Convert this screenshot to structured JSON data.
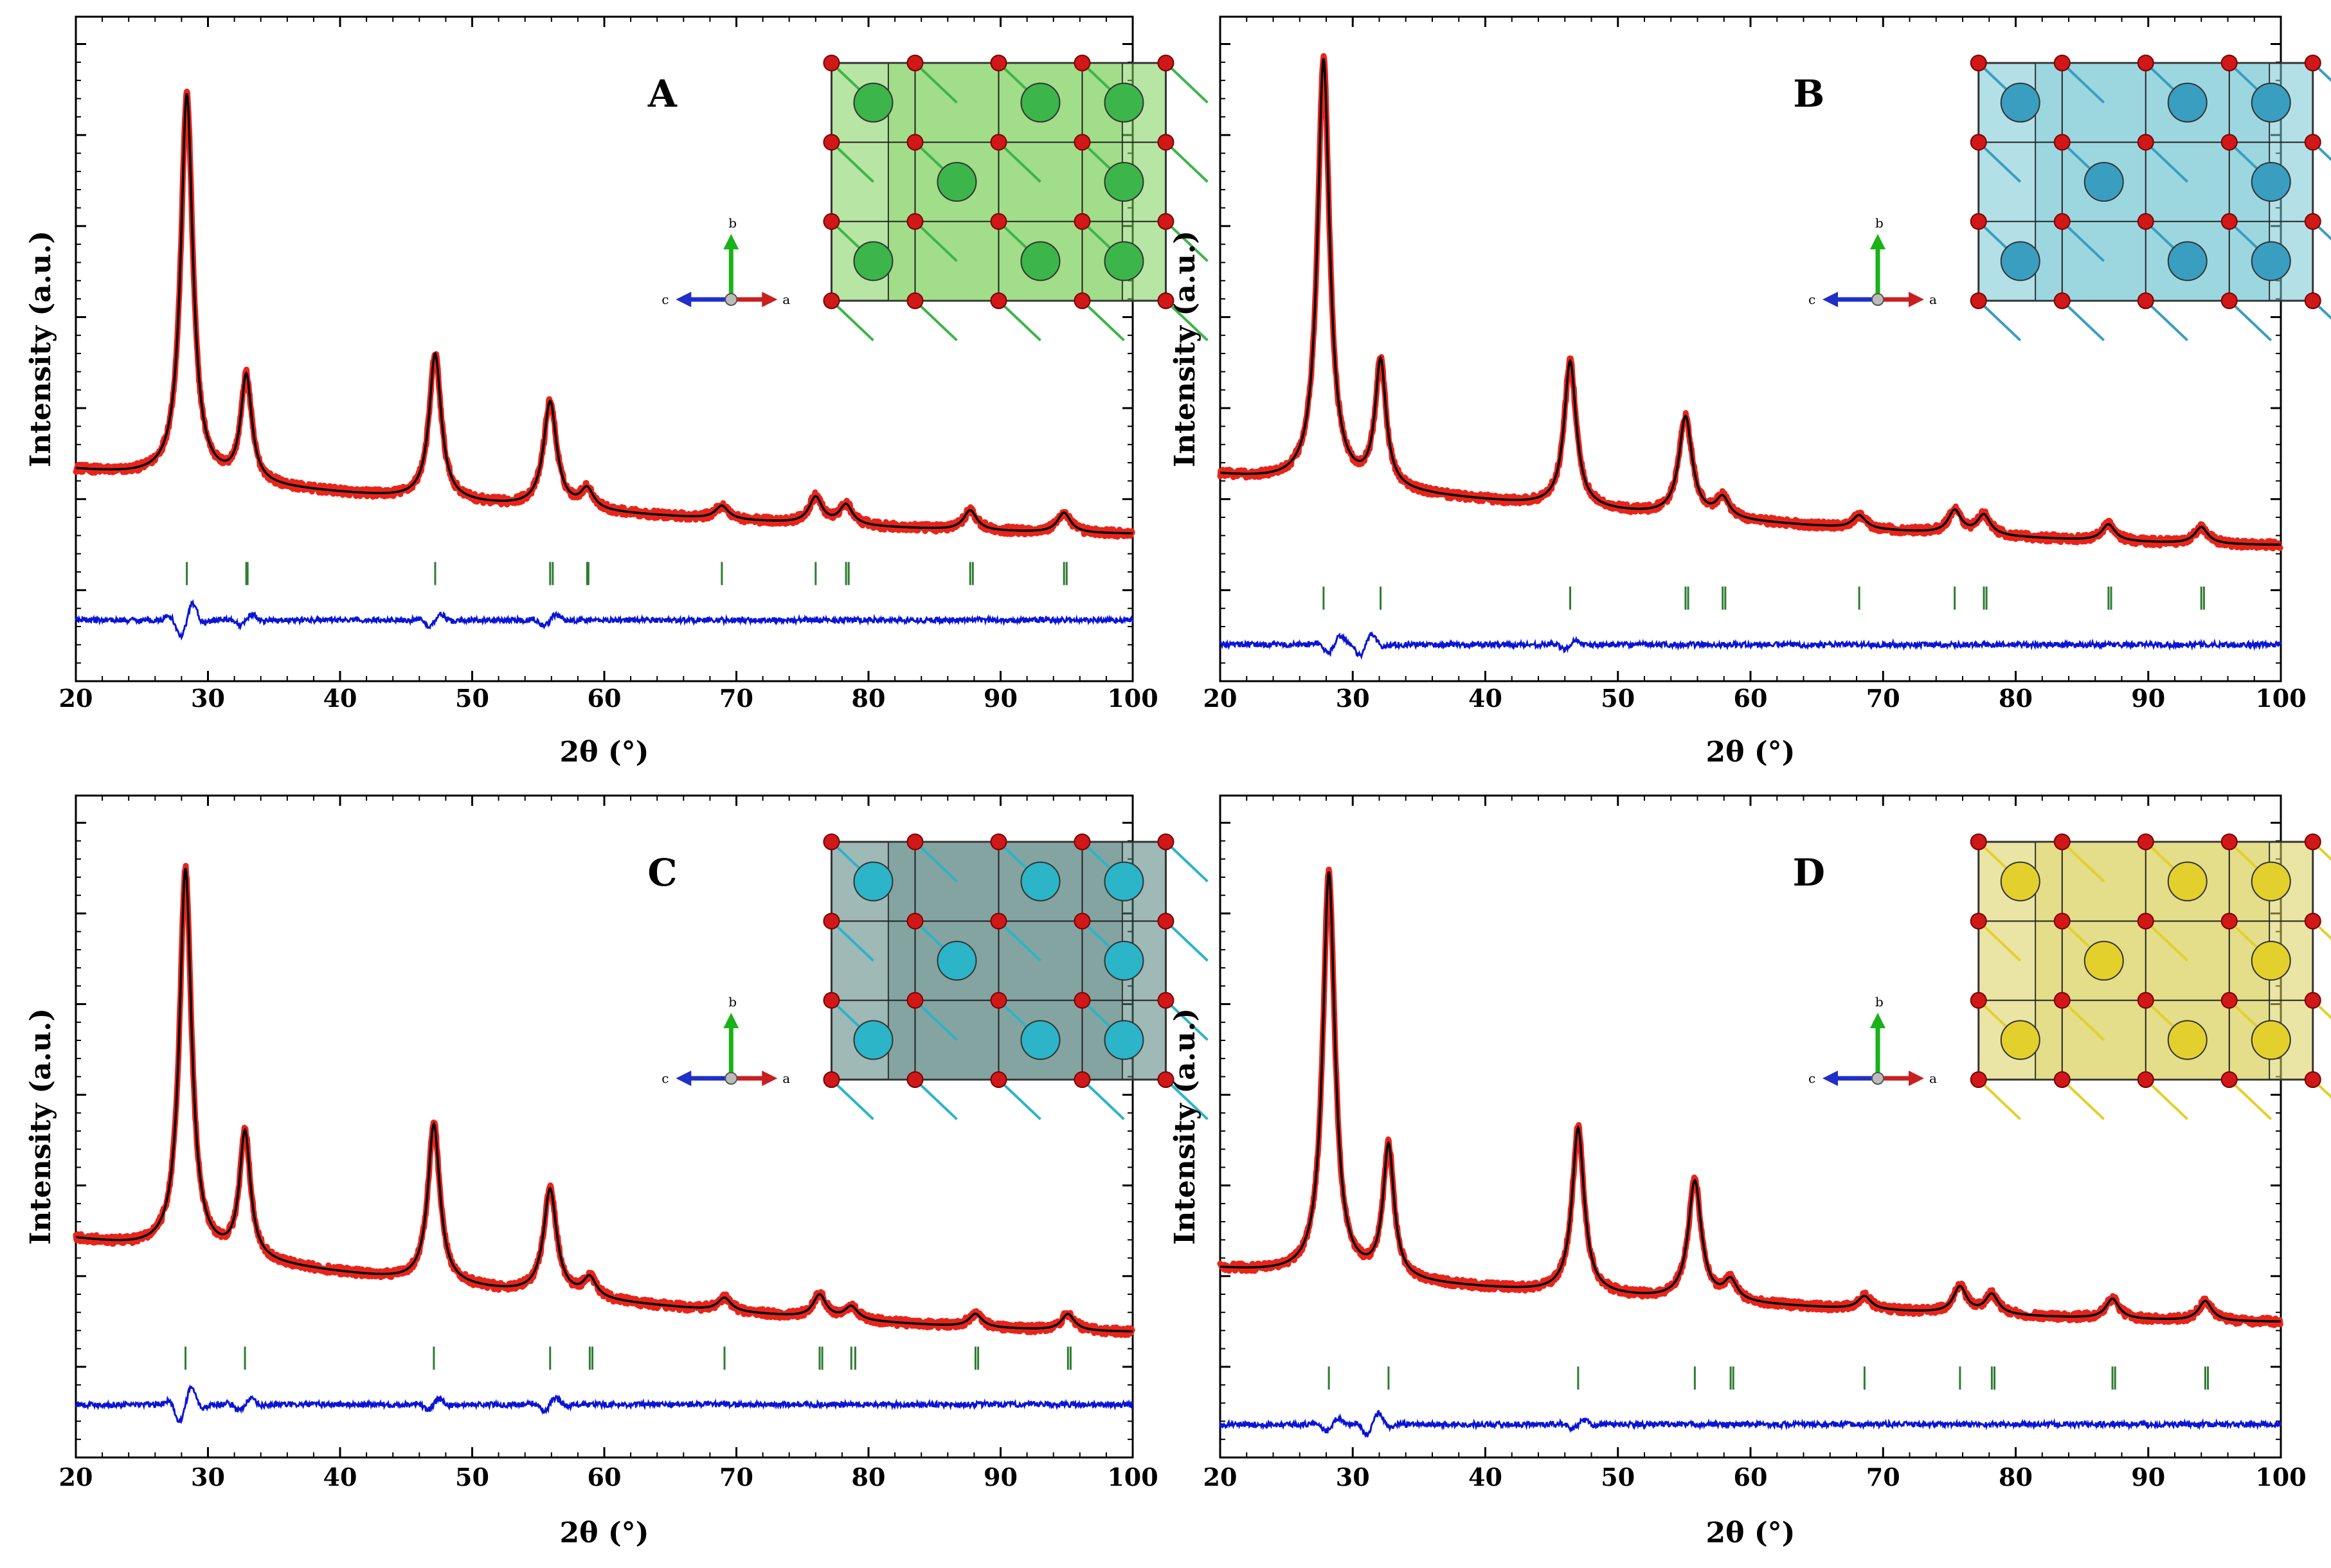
{
  "colors": {
    "observed": "#e8241a",
    "calculated": "#000000",
    "difference": "#0a14d6",
    "reflections": "#2e7d32",
    "axes": "#000000"
  },
  "chart_data": [
    {
      "type": "line",
      "panel_label": "A",
      "xlabel": "2θ (°)",
      "ylabel": "Intensity (a.u.)",
      "xlim": [
        20,
        100
      ],
      "ylim": [
        0,
        1
      ],
      "xticks": [
        20,
        30,
        40,
        50,
        60,
        70,
        80,
        90,
        100
      ],
      "x_tick_labels": [
        "20",
        "30",
        "40",
        "50",
        "60",
        "70",
        "80",
        "90",
        "100"
      ],
      "grid": false,
      "legend": "none",
      "inset": "crystal structure (green polyhedra) with c, b, a axes",
      "background": {
        "start": 0.318,
        "end": 0.222
      },
      "peaks": [
        {
          "x": 28.4,
          "height": 0.58,
          "width": 0.55
        },
        {
          "x": 32.9,
          "height": 0.16,
          "width": 0.5
        },
        {
          "x": 47.2,
          "height": 0.22,
          "width": 0.55
        },
        {
          "x": 55.9,
          "height": 0.16,
          "width": 0.6
        },
        {
          "x": 58.7,
          "height": 0.03,
          "width": 0.6
        },
        {
          "x": 68.9,
          "height": 0.02,
          "width": 0.6
        },
        {
          "x": 76.0,
          "height": 0.04,
          "width": 0.6
        },
        {
          "x": 78.3,
          "height": 0.03,
          "width": 0.6
        },
        {
          "x": 87.7,
          "height": 0.03,
          "width": 0.6
        },
        {
          "x": 94.8,
          "height": 0.03,
          "width": 0.6
        }
      ],
      "reflections": [
        28.4,
        32.9,
        33.0,
        47.2,
        55.9,
        56.1,
        58.7,
        58.8,
        68.9,
        76.0,
        78.3,
        78.5,
        87.7,
        87.9,
        94.8,
        95.0
      ],
      "difference": {
        "baseline": 0.092,
        "features": [
          {
            "x": 28.4,
            "amp": 0.03
          },
          {
            "x": 32.9,
            "amp": 0.01
          },
          {
            "x": 47.2,
            "amp": 0.01
          },
          {
            "x": 55.9,
            "amp": 0.01
          }
        ]
      }
    },
    {
      "type": "line",
      "panel_label": "B",
      "xlabel": "2θ (°)",
      "ylabel": "Intensity (a.u.)",
      "xlim": [
        20,
        100
      ],
      "ylim": [
        0,
        1
      ],
      "xticks": [
        20,
        30,
        40,
        50,
        60,
        70,
        80,
        90,
        100
      ],
      "x_tick_labels": [
        "20",
        "30",
        "40",
        "50",
        "60",
        "70",
        "80",
        "90",
        "100"
      ],
      "grid": false,
      "legend": "none",
      "inset": "crystal structure (cyan polyhedra) with c, b, a axes",
      "background": {
        "start": 0.31,
        "end": 0.205
      },
      "peaks": [
        {
          "x": 27.8,
          "height": 0.64,
          "width": 0.55
        },
        {
          "x": 32.1,
          "height": 0.19,
          "width": 0.5
        },
        {
          "x": 46.4,
          "height": 0.22,
          "width": 0.55
        },
        {
          "x": 55.1,
          "height": 0.15,
          "width": 0.6
        },
        {
          "x": 57.9,
          "height": 0.03,
          "width": 0.6
        },
        {
          "x": 68.2,
          "height": 0.02,
          "width": 0.6
        },
        {
          "x": 75.4,
          "height": 0.035,
          "width": 0.6
        },
        {
          "x": 77.6,
          "height": 0.03,
          "width": 0.6
        },
        {
          "x": 87.0,
          "height": 0.025,
          "width": 0.6
        },
        {
          "x": 94.0,
          "height": 0.025,
          "width": 0.6
        }
      ],
      "reflections": [
        27.8,
        32.1,
        46.4,
        55.1,
        55.3,
        57.9,
        58.1,
        68.2,
        75.4,
        77.6,
        77.8,
        87.0,
        87.2,
        94.0,
        94.2
      ],
      "difference": {
        "baseline": 0.055,
        "features": [
          {
            "x": 28.6,
            "amp": 0.015
          },
          {
            "x": 31.0,
            "amp": 0.02
          },
          {
            "x": 46.4,
            "amp": 0.008
          }
        ]
      }
    },
    {
      "type": "line",
      "panel_label": "C",
      "xlabel": "2θ (°)",
      "ylabel": "Intensity (a.u.)",
      "xlim": [
        20,
        100
      ],
      "ylim": [
        0,
        1
      ],
      "xticks": [
        20,
        30,
        40,
        50,
        60,
        70,
        80,
        90,
        100
      ],
      "x_tick_labels": [
        "20",
        "30",
        "40",
        "50",
        "60",
        "70",
        "80",
        "90",
        "100"
      ],
      "grid": false,
      "legend": "none",
      "inset": "crystal structure (dark teal polyhedra) with c, b, a axes",
      "background": {
        "start": 0.33,
        "end": 0.19
      },
      "peaks": [
        {
          "x": 28.3,
          "height": 0.58,
          "width": 0.55
        },
        {
          "x": 32.8,
          "height": 0.19,
          "width": 0.5
        },
        {
          "x": 47.1,
          "height": 0.24,
          "width": 0.55
        },
        {
          "x": 55.9,
          "height": 0.16,
          "width": 0.6
        },
        {
          "x": 58.9,
          "height": 0.03,
          "width": 0.6
        },
        {
          "x": 69.1,
          "height": 0.02,
          "width": 0.6
        },
        {
          "x": 76.3,
          "height": 0.035,
          "width": 0.6
        },
        {
          "x": 78.7,
          "height": 0.02,
          "width": 0.6
        },
        {
          "x": 88.1,
          "height": 0.02,
          "width": 0.6
        },
        {
          "x": 95.1,
          "height": 0.025,
          "width": 0.6
        }
      ],
      "reflections": [
        28.3,
        32.8,
        47.1,
        55.9,
        58.9,
        59.1,
        69.1,
        76.3,
        76.5,
        78.7,
        79.0,
        88.1,
        88.3,
        95.1,
        95.3
      ],
      "difference": {
        "baseline": 0.08,
        "features": [
          {
            "x": 28.3,
            "amp": 0.03
          },
          {
            "x": 32.8,
            "amp": 0.01
          },
          {
            "x": 47.1,
            "amp": 0.01
          },
          {
            "x": 55.9,
            "amp": 0.012
          }
        ]
      }
    },
    {
      "type": "line",
      "panel_label": "D",
      "xlabel": "2θ (°)",
      "ylabel": "Intensity (a.u.)",
      "xlim": [
        20,
        100
      ],
      "ylim": [
        0,
        1
      ],
      "xticks": [
        20,
        30,
        40,
        50,
        60,
        70,
        80,
        90,
        100
      ],
      "x_tick_labels": [
        "20",
        "30",
        "40",
        "50",
        "60",
        "70",
        "80",
        "90",
        "100"
      ],
      "grid": false,
      "legend": "none",
      "inset": "crystal structure (yellow polyhedra) with c, b, a axes",
      "background": {
        "start": 0.285,
        "end": 0.205
      },
      "peaks": [
        {
          "x": 28.2,
          "height": 0.61,
          "width": 0.55
        },
        {
          "x": 32.7,
          "height": 0.2,
          "width": 0.5
        },
        {
          "x": 47.0,
          "height": 0.25,
          "width": 0.55
        },
        {
          "x": 55.8,
          "height": 0.18,
          "width": 0.6
        },
        {
          "x": 58.5,
          "height": 0.03,
          "width": 0.6
        },
        {
          "x": 68.6,
          "height": 0.02,
          "width": 0.6
        },
        {
          "x": 75.8,
          "height": 0.04,
          "width": 0.6
        },
        {
          "x": 78.2,
          "height": 0.03,
          "width": 0.6
        },
        {
          "x": 87.3,
          "height": 0.03,
          "width": 0.6
        },
        {
          "x": 94.3,
          "height": 0.03,
          "width": 0.6
        }
      ],
      "reflections": [
        28.2,
        32.7,
        47.0,
        55.8,
        58.5,
        58.7,
        68.6,
        75.8,
        78.2,
        78.4,
        87.3,
        87.5,
        94.3,
        94.5
      ],
      "difference": {
        "baseline": 0.05,
        "features": [
          {
            "x": 28.5,
            "amp": 0.012
          },
          {
            "x": 31.5,
            "amp": 0.02
          },
          {
            "x": 47.0,
            "amp": 0.008
          }
        ]
      }
    }
  ]
}
